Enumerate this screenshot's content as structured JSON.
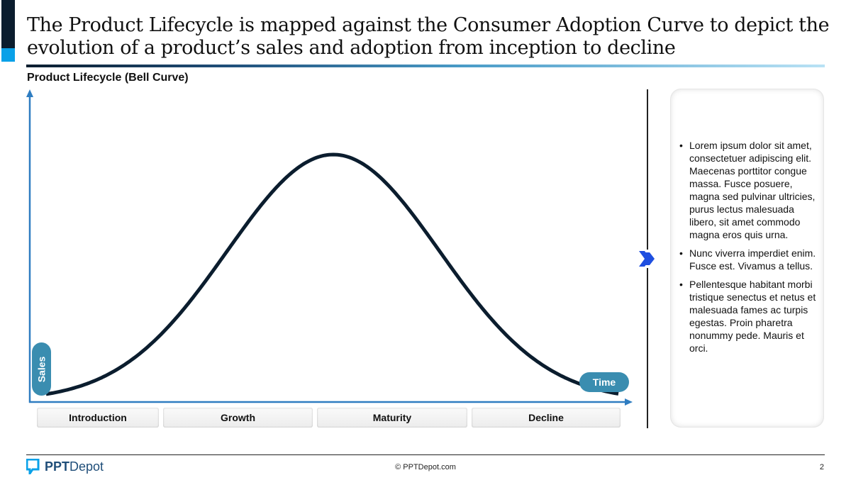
{
  "header": {
    "title": "The Product Lifecycle is mapped against the Consumer Adoption Curve to depict the evolution of a product’s sales and adoption from inception to decline",
    "subtitle": "Product Lifecycle (Bell Curve)"
  },
  "diagram": {
    "y_axis_label": "Sales",
    "x_axis_label": "Time",
    "curve_shape": "bell",
    "stages": [
      {
        "label": "Introduction"
      },
      {
        "label": "Growth"
      },
      {
        "label": "Maturity"
      },
      {
        "label": "Decline"
      }
    ],
    "colors": {
      "curve": "#0b1d2e",
      "axis": "#2f7dc1",
      "pill": "#3a8db0",
      "chevron": "#1f4fe0"
    }
  },
  "panel": {
    "icon": "double-chevron-right-icon",
    "bullets": [
      "Lorem ipsum dolor sit amet, consectetuer adipiscing elit. Maecenas porttitor congue massa. Fusce posuere, magna sed pulvinar ultricies, purus lectus malesuada libero, sit amet commodo magna eros quis urna.",
      "Nunc viverra imperdiet enim. Fusce est. Vivamus a tellus.",
      "Pellentesque habitant morbi tristique senectus et netus et malesuada fames ac turpis egestas. Proin pharetra nonummy pede. Mauris et orci."
    ]
  },
  "footer": {
    "logo_bold": "PPT",
    "logo_regular": "Depot",
    "copyright": "© PPTDepot.com",
    "page_number": "2"
  }
}
